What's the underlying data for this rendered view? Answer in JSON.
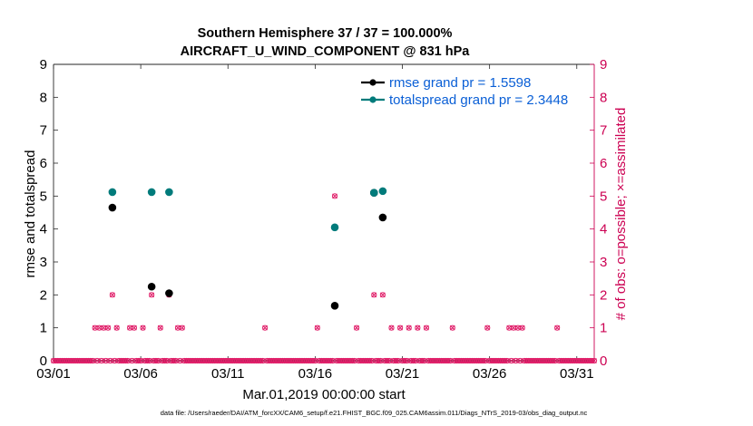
{
  "chart_data": {
    "type": "scatter",
    "title_line1": "Southern Hemisphere 37 / 37 = 100.000%",
    "title_line2": "AIRCRAFT_U_WIND_COMPONENT @ 831 hPa",
    "xlabel": "Mar.01,2019 00:00:00 start",
    "ylabel_left": "rmse and totalspread",
    "ylabel_right": "# of obs: o=possible; ×=assimilated",
    "footer": "data file: /Users/raeder/DAI/ATM_forcXX/CAM6_setup/f.e21.FHIST_BGC.f09_025.CAM6assim.011/Diags_NTrS_2019-03/obs_diag_output.nc",
    "xlim": [
      1,
      32
    ],
    "ylim_left": [
      0,
      9
    ],
    "ylim_right": [
      0,
      9
    ],
    "x_ticks": [
      {
        "day": 1,
        "label": "03/01"
      },
      {
        "day": 6,
        "label": "03/06"
      },
      {
        "day": 11,
        "label": "03/11"
      },
      {
        "day": 16,
        "label": "03/16"
      },
      {
        "day": 21,
        "label": "03/21"
      },
      {
        "day": 26,
        "label": "03/26"
      },
      {
        "day": 31,
        "label": "03/31"
      }
    ],
    "y_ticks_left": [
      "0",
      "1",
      "2",
      "3",
      "4",
      "5",
      "6",
      "7",
      "8",
      "9"
    ],
    "y_ticks_right": [
      "0",
      "1",
      "2",
      "3",
      "4",
      "5",
      "6",
      "7",
      "8",
      "9"
    ],
    "legend": [
      {
        "label": "rmse grand pr = 1.5598",
        "color": "#000000",
        "text_color": "#0a5fd6"
      },
      {
        "label": "totalspread grand pr = 2.3448",
        "color": "#007b7b",
        "text_color": "#0a5fd6"
      }
    ],
    "series": [
      {
        "name": "rmse",
        "color": "#000000",
        "points": [
          [
            4.375,
            4.65
          ],
          [
            6.625,
            2.25
          ],
          [
            7.625,
            2.05
          ],
          [
            17.125,
            1.67
          ],
          [
            19.375,
            5.1
          ],
          [
            19.875,
            4.35
          ]
        ]
      },
      {
        "name": "totalspread",
        "color": "#007b7b",
        "points": [
          [
            4.375,
            5.12
          ],
          [
            6.625,
            5.12
          ],
          [
            7.625,
            5.12
          ],
          [
            17.125,
            4.05
          ],
          [
            19.375,
            5.1
          ],
          [
            19.875,
            5.15
          ]
        ]
      }
    ],
    "obs_count": {
      "color": "#e0206a",
      "step": 0.125,
      "x_start": 1,
      "x_end": 32,
      "nonzero": [
        [
          3.375,
          1
        ],
        [
          3.625,
          1
        ],
        [
          3.875,
          1
        ],
        [
          4.125,
          1
        ],
        [
          4.375,
          2
        ],
        [
          4.625,
          1
        ],
        [
          5.375,
          1
        ],
        [
          5.625,
          1
        ],
        [
          6.125,
          1
        ],
        [
          6.625,
          2
        ],
        [
          7.125,
          1
        ],
        [
          7.625,
          2
        ],
        [
          8.125,
          1
        ],
        [
          8.375,
          1
        ],
        [
          13.125,
          1
        ],
        [
          16.125,
          1
        ],
        [
          17.125,
          5
        ],
        [
          18.375,
          1
        ],
        [
          19.375,
          2
        ],
        [
          19.875,
          2
        ],
        [
          20.375,
          1
        ],
        [
          20.875,
          1
        ],
        [
          21.375,
          1
        ],
        [
          21.875,
          1
        ],
        [
          22.375,
          1
        ],
        [
          23.875,
          1
        ],
        [
          25.875,
          1
        ],
        [
          27.125,
          1
        ],
        [
          27.375,
          1
        ],
        [
          27.625,
          1
        ],
        [
          27.875,
          1
        ],
        [
          29.875,
          1
        ]
      ]
    }
  }
}
